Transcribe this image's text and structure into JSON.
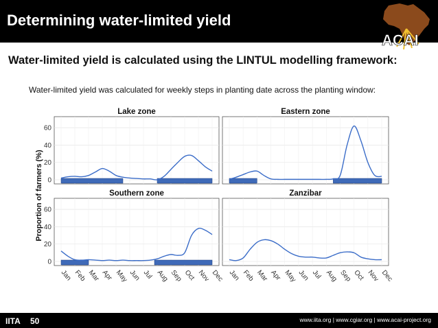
{
  "header": {
    "title": "Determining water-limited yield"
  },
  "logo": {
    "text": "ACAI",
    "land_color": "#8b4a1c",
    "accent_color": "#f2c230"
  },
  "subtitle": "Water-limited yield is calculated using the LINTUL modelling framework:",
  "description": "Water-limited yield was calculated for weekly steps in planting date across the planting window:",
  "chart_data": {
    "type": "line",
    "ylabel": "Proportion of farmers (%)",
    "ylim": [
      0,
      68
    ],
    "yticks": [
      0,
      20,
      40,
      60
    ],
    "months": [
      "Jan",
      "Feb",
      "Mar",
      "Apr",
      "May",
      "Jun",
      "Jul",
      "Aug",
      "Sep",
      "Oct",
      "Nov",
      "Dec"
    ],
    "line_color": "#3a6cc8",
    "window_color": "#3f6ab8",
    "panels": [
      {
        "title": "Lake zone",
        "x": [
          1,
          1.5,
          2,
          2.5,
          3,
          3.5,
          4,
          4.5,
          5,
          5.5,
          6,
          6.5,
          7,
          7.5,
          8,
          8.5,
          9,
          9.5,
          10,
          10.5,
          11,
          11.5,
          12
        ],
        "values": [
          2,
          3.5,
          4,
          3.5,
          5,
          9,
          13,
          10,
          5,
          3,
          2,
          1.5,
          1,
          1,
          0,
          4,
          12,
          20,
          27,
          28,
          22,
          15,
          10
        ],
        "windows": [
          [
            1,
            5.5
          ],
          [
            8,
            12
          ]
        ]
      },
      {
        "title": "Eastern zone",
        "x": [
          1,
          1.5,
          2,
          2.5,
          3,
          3.5,
          4,
          4.5,
          5,
          5.5,
          6,
          6.5,
          7,
          7.5,
          8,
          8.5,
          9,
          9.5,
          10,
          10.5,
          11,
          11.5,
          12
        ],
        "values": [
          0.5,
          3,
          6,
          9,
          10,
          5,
          1,
          0.5,
          0.5,
          0.5,
          0.5,
          0.5,
          0.5,
          0.5,
          0.5,
          1,
          5,
          40,
          62,
          45,
          20,
          5,
          4
        ],
        "windows": [
          [
            1,
            3
          ],
          [
            8.5,
            12
          ]
        ]
      },
      {
        "title": "Southern zone",
        "x": [
          1,
          1.5,
          2,
          2.5,
          3,
          3.5,
          4,
          4.5,
          5,
          5.5,
          6,
          6.5,
          7,
          7.5,
          8,
          8.5,
          9,
          9.5,
          10,
          10.5,
          11,
          11.5,
          12
        ],
        "values": [
          12,
          6,
          2,
          1.5,
          2,
          1.5,
          1,
          1.5,
          1,
          1.5,
          1,
          1,
          1,
          1.5,
          3,
          6,
          8,
          7,
          10,
          30,
          38,
          36,
          31
        ],
        "windows": [
          [
            1,
            3
          ],
          [
            7.8,
            12
          ]
        ]
      },
      {
        "title": "Zanzibar",
        "x": [
          1,
          1.5,
          2,
          2.5,
          3,
          3.5,
          4,
          4.5,
          5,
          5.5,
          6,
          6.5,
          7,
          7.5,
          8,
          8.5,
          9,
          9.5,
          10,
          10.5,
          11,
          11.5,
          12
        ],
        "values": [
          2,
          1,
          4,
          14,
          22,
          25,
          24,
          20,
          14,
          9,
          6,
          5,
          5,
          4,
          4,
          7,
          10,
          11,
          10,
          5,
          3,
          2,
          2
        ],
        "windows": []
      }
    ]
  },
  "footer": {
    "links": "www.iita.org | www.cgiar.org | www.acai-project.org",
    "partner": "IITA"
  }
}
